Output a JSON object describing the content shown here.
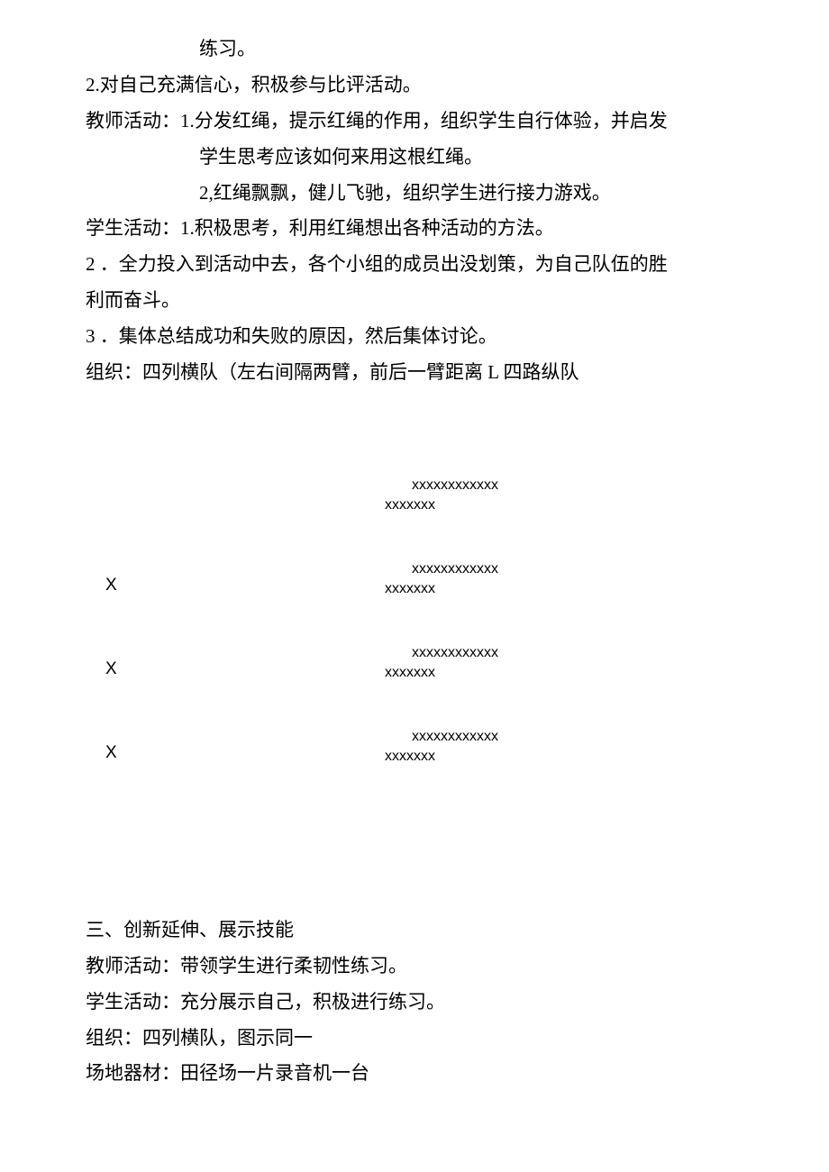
{
  "lines": {
    "practice": "练习。",
    "line2": "2.对自己充满信心，积极参与比评活动。",
    "teacherActivity1a": "教师活动：1.分发红绳，提示红绳的作用，组织学生自行体验，并启发",
    "teacherActivity1b": "学生思考应该如何来用这根红绳。",
    "teacherActivity2": "2,红绳飘飘，健儿飞驰，组织学生进行接力游戏。",
    "studentActivity1": "学生活动：1.积极思考，利用红绳想出各种活动的方法。",
    "studentActivity2a": "2 ．全力投入到活动中去，各个小组的成员出没划策，为自己队伍的胜",
    "studentActivity2b": "利而奋斗。",
    "studentActivity3": "3 ．集体总结成功和失败的原因，然后集体讨论。",
    "organization": "组织：四列横队（左右间隔两臂，前后一臂距离 L 四路纵队",
    "section3Title": "三、创新延伸、展示技能",
    "section3Teacher": "教师活动：带领学生进行柔韧性练习。",
    "section3Student": "学生活动：充分展示自己，积极进行练习。",
    "section3Org": "组织：四列横队，图示同一",
    "section3Equip": "场地器材：田径场一片录音机一台"
  },
  "diagram": {
    "rows": [
      {
        "x": "",
        "upper": "xxxxxxxxxxxx",
        "lower": "xxxxxxx"
      },
      {
        "x": "X",
        "upper": "xxxxxxxxxxxx",
        "lower": "xxxxxxx"
      },
      {
        "x": "X",
        "upper": "xxxxxxxxxxxx",
        "lower": "xxxxxxx"
      },
      {
        "x": "X",
        "upper": "xxxxxxxxxxxx",
        "lower": "xxxxxxx"
      }
    ]
  }
}
